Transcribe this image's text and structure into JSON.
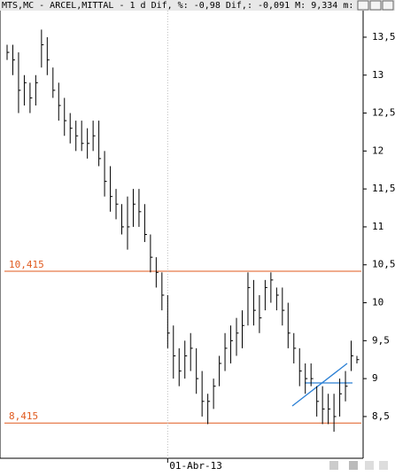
{
  "chart_data": {
    "type": "ohlc",
    "title": "MTS,MC - ARCEL,MITTAL -  1 d Dif, %: -0,98 Dif,: -0,091 M: 9,334 m:",
    "categories": [
      null,
      null,
      null,
      null,
      null,
      null,
      null,
      null,
      null,
      null,
      null,
      null,
      null,
      null,
      null,
      null,
      null,
      null,
      null,
      null,
      null,
      null,
      null,
      null,
      null,
      null,
      null,
      null,
      "01-Abr-13",
      null,
      null,
      null,
      null,
      null,
      null,
      null,
      null,
      null,
      null,
      null,
      null,
      null,
      null,
      null,
      null,
      null,
      null,
      null,
      null,
      null,
      null,
      null,
      null,
      null,
      null,
      null,
      null,
      null,
      null,
      null,
      null,
      null
    ],
    "high": [
      13.4,
      13.4,
      13.3,
      13.0,
      12.9,
      13.0,
      13.6,
      13.5,
      13.1,
      12.9,
      12.7,
      12.5,
      12.4,
      12.4,
      12.3,
      12.4,
      12.4,
      12.0,
      11.8,
      11.5,
      11.3,
      11.4,
      11.5,
      11.5,
      11.3,
      10.9,
      10.6,
      10.4,
      10.1,
      9.7,
      9.4,
      9.5,
      9.6,
      9.4,
      9.1,
      8.8,
      9.0,
      9.3,
      9.6,
      9.7,
      9.8,
      9.9,
      10.4,
      10.3,
      10.1,
      10.3,
      10.4,
      10.2,
      10.2,
      10.0,
      9.6,
      9.4,
      9.2,
      9.2,
      8.9,
      8.9,
      8.8,
      8.8,
      9.0,
      9.1,
      9.5,
      9.3
    ],
    "low": [
      13.2,
      13.0,
      12.5,
      12.6,
      12.5,
      12.6,
      13.1,
      13.0,
      12.7,
      12.4,
      12.2,
      12.1,
      12.0,
      12.0,
      11.9,
      12.0,
      11.8,
      11.4,
      11.2,
      11.1,
      10.9,
      10.7,
      11.0,
      11.0,
      10.8,
      10.4,
      10.2,
      9.9,
      9.4,
      9.0,
      8.9,
      9.0,
      9.1,
      8.8,
      8.5,
      8.4,
      8.6,
      8.9,
      9.1,
      9.2,
      9.3,
      9.4,
      9.7,
      9.7,
      9.6,
      9.9,
      10.0,
      9.9,
      9.7,
      9.4,
      9.2,
      8.9,
      8.8,
      8.9,
      8.5,
      8.4,
      8.4,
      8.3,
      8.5,
      8.7,
      9.1,
      9.2
    ],
    "close": [
      13.3,
      13.2,
      12.8,
      12.9,
      12.7,
      12.9,
      13.4,
      13.2,
      12.8,
      12.6,
      12.4,
      12.3,
      12.2,
      12.1,
      12.1,
      12.2,
      11.9,
      11.6,
      11.4,
      11.3,
      11.0,
      11.0,
      11.3,
      11.2,
      10.9,
      10.6,
      10.4,
      10.1,
      9.6,
      9.3,
      9.1,
      9.3,
      9.4,
      9.0,
      8.7,
      8.7,
      8.9,
      9.2,
      9.4,
      9.5,
      9.6,
      9.7,
      10.2,
      9.9,
      9.8,
      10.2,
      10.3,
      10.1,
      9.9,
      9.6,
      9.4,
      9.1,
      9.0,
      9.0,
      8.7,
      8.6,
      8.6,
      8.5,
      8.8,
      8.9,
      9.3,
      9.25
    ],
    "color": "#000000",
    "ylim": [
      7.95,
      13.85
    ],
    "yticks": [
      {
        "value": 8.5,
        "label": "8,5"
      },
      9,
      {
        "value": 9.5,
        "label": "9,5"
      },
      10,
      {
        "value": 10.5,
        "label": "10,5"
      },
      11,
      {
        "value": 11.5,
        "label": "11,5"
      },
      12,
      {
        "value": 12.5,
        "label": "12,5"
      },
      13,
      {
        "value": 13.5,
        "label": "13,5"
      }
    ],
    "hlines": [
      {
        "value": 10.415,
        "label": "10,415"
      },
      {
        "value": 8.415,
        "label": "8,415"
      }
    ],
    "hline_color": "#e05a1e"
  }
}
